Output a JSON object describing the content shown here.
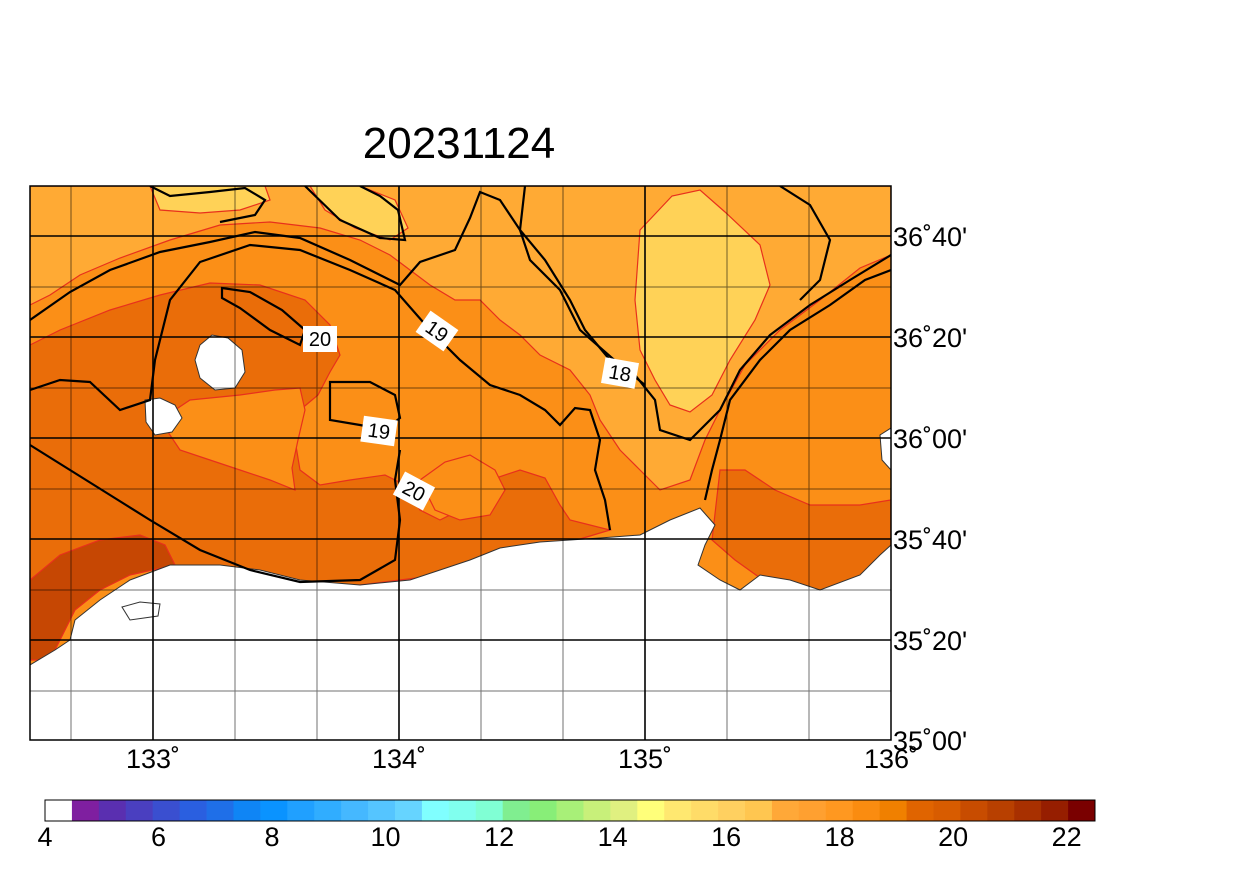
{
  "chart_data": {
    "type": "heatmap",
    "title": "20231124",
    "longitude_ticks": [
      "133˚",
      "134˚",
      "135˚",
      "136˚"
    ],
    "latitude_ticks": [
      "36˚40'",
      "36˚20'",
      "36˚00'",
      "35˚40'",
      "35˚20'",
      "35˚00'"
    ],
    "lon_range": [
      132.45,
      135.95
    ],
    "lat_range": [
      35.0,
      36.9
    ],
    "grid": true,
    "contour_labels": [
      "20",
      "19",
      "18",
      "19",
      "20"
    ],
    "colorbar": {
      "min": 4,
      "max": 22.5,
      "step": 0.5,
      "labels": [
        "4",
        "6",
        "8",
        "10",
        "12",
        "14",
        "16",
        "18",
        "20",
        "22"
      ],
      "colors": [
        "#ffffff",
        "#7f1fa0",
        "#5a2fb0",
        "#4a3fc0",
        "#3a4fd0",
        "#2a5fe0",
        "#1f6fe8",
        "#0f85f5",
        "#0a93ff",
        "#20a0ff",
        "#30adff",
        "#45b8ff",
        "#55c5ff",
        "#66d4ff",
        "#80ffff",
        "#80ffee",
        "#80ffd4",
        "#80ee90",
        "#88ee78",
        "#a8f078",
        "#c8f07a",
        "#e0f080",
        "#ffff7a",
        "#ffe870",
        "#ffdc68",
        "#ffd060",
        "#ffc650",
        "#ffa838",
        "#ffa030",
        "#ff9820",
        "#fa8c10",
        "#f08000",
        "#e06400",
        "#d85c00",
        "#c84c00",
        "#b84000",
        "#a83000",
        "#961e00",
        "#7a0000"
      ]
    },
    "field_colors": {
      "c16_17": "#ffd257",
      "c17_18": "#ffaa34",
      "c18_19": "#fb8f17",
      "c19_20": "#ea6d09",
      "c20_21": "#c64703",
      "land": "#ffffff"
    }
  }
}
